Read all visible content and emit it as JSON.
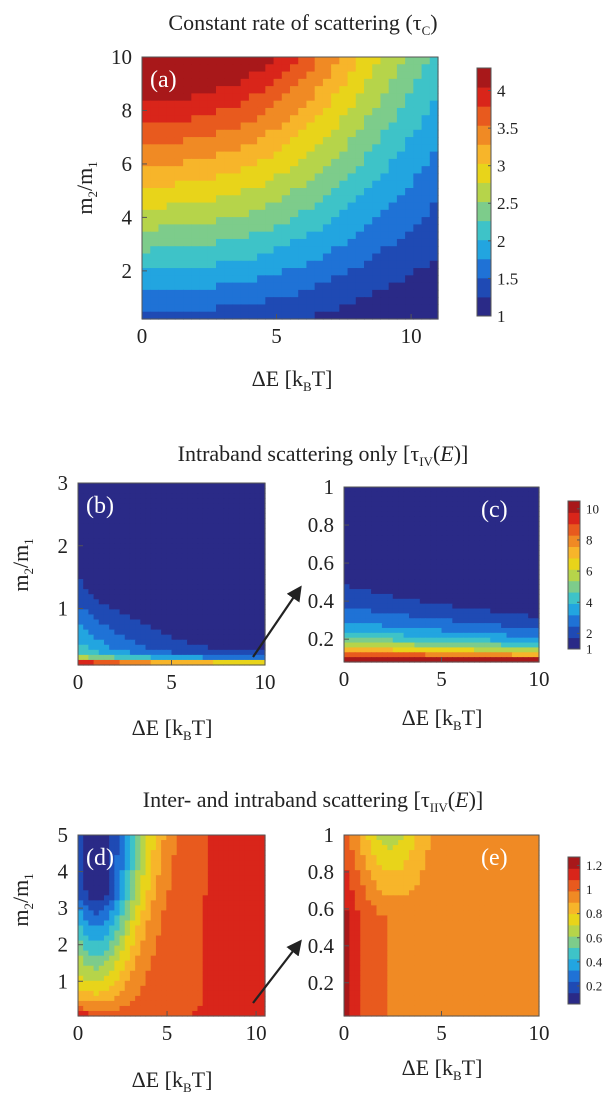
{
  "colors": {
    "colormap": [
      "#2a2a87",
      "#1f4ab4",
      "#1f72d6",
      "#22a5e0",
      "#3ec3c8",
      "#7dcc8b",
      "#b6d44a",
      "#e8d41a",
      "#f7b52a",
      "#f08a24",
      "#e85a1e",
      "#d9251a",
      "#a8181a"
    ],
    "axis": "#555555",
    "arrow": "#222222"
  },
  "sections": {
    "a_title": "Constant rate of scattering (τC)",
    "bc_title": "Intraband scattering only  [τIV(E)]",
    "de_title": "Inter- and intraband scattering  [τIIV(E)]"
  },
  "chart_data": [
    {
      "id": "a",
      "type": "heatmap",
      "panel_label": "(a)",
      "xlabel": "ΔE [kBT]",
      "ylabel": "m2/m1",
      "xlim": [
        0,
        11
      ],
      "ylim": [
        0.2,
        10
      ],
      "xticks": [
        0,
        5,
        10
      ],
      "yticks": [
        2,
        4,
        6,
        8,
        10
      ],
      "colorbar": {
        "range": [
          1,
          4.3
        ],
        "ticks": [
          1,
          1.5,
          2,
          2.5,
          3,
          3.5,
          4
        ]
      },
      "samples": [
        {
          "x": 0,
          "y": 10,
          "value": 4.3
        },
        {
          "x": 0,
          "y": 5,
          "value": 3.0
        },
        {
          "x": 0,
          "y": 0.5,
          "value": 1.5
        },
        {
          "x": 5,
          "y": 10,
          "value": 3.0
        },
        {
          "x": 5,
          "y": 3,
          "value": 2.0
        },
        {
          "x": 10,
          "y": 10,
          "value": 1.6
        },
        {
          "x": 10,
          "y": 2,
          "value": 1.0
        }
      ]
    },
    {
      "id": "b",
      "type": "heatmap",
      "panel_label": "(b)",
      "xlabel": "ΔE [kBT]",
      "ylabel": "m2/m1",
      "xlim": [
        0,
        10
      ],
      "ylim": [
        0.1,
        3
      ],
      "xticks": [
        0,
        5,
        10
      ],
      "yticks": [
        1,
        2,
        3
      ],
      "samples": [
        {
          "x": 0,
          "y": 0.1,
          "value": 10
        },
        {
          "x": 5,
          "y": 0.2,
          "value": 4
        },
        {
          "x": 0,
          "y": 1,
          "value": 2
        },
        {
          "x": 5,
          "y": 2,
          "value": 1
        }
      ]
    },
    {
      "id": "c",
      "type": "heatmap",
      "panel_label": "(c)",
      "xlabel": "ΔE [kBT]",
      "xlim": [
        0,
        10
      ],
      "ylim": [
        0.08,
        1
      ],
      "xticks": [
        0,
        5,
        10
      ],
      "yticks": [
        0.2,
        0.4,
        0.6,
        0.8,
        1
      ],
      "colorbar": {
        "range": [
          1,
          10.5
        ],
        "ticks": [
          1,
          2,
          4,
          6,
          8,
          10
        ]
      },
      "samples": [
        {
          "x": 0,
          "y": 0.1,
          "value": 10
        },
        {
          "x": 5,
          "y": 0.2,
          "value": 4
        },
        {
          "x": 0,
          "y": 0.8,
          "value": 2
        },
        {
          "x": 8,
          "y": 0.9,
          "value": 1
        }
      ]
    },
    {
      "id": "d",
      "type": "heatmap",
      "panel_label": "(d)",
      "xlabel": "ΔE [kBT]",
      "ylabel": "m2/m1",
      "xlim": [
        0,
        10.5
      ],
      "ylim": [
        0.05,
        5
      ],
      "xticks": [
        0,
        5,
        10
      ],
      "yticks": [
        1,
        2,
        3,
        4,
        5
      ],
      "samples": [
        {
          "x": 1,
          "y": 4.5,
          "value": 0.1
        },
        {
          "x": 0,
          "y": 0.1,
          "value": 1.25
        },
        {
          "x": 5,
          "y": 3,
          "value": 0.85
        },
        {
          "x": 10,
          "y": 3,
          "value": 0.95
        }
      ]
    },
    {
      "id": "e",
      "type": "heatmap",
      "panel_label": "(e)",
      "xlabel": "ΔE [kBT]",
      "xlim": [
        0,
        10
      ],
      "ylim": [
        0.02,
        1
      ],
      "xticks": [
        0,
        5,
        10
      ],
      "yticks": [
        0.2,
        0.4,
        0.6,
        0.8,
        1
      ],
      "colorbar": {
        "range": [
          0.05,
          1.27
        ],
        "ticks": [
          0.2,
          0.4,
          0.6,
          0.8,
          1,
          1.2
        ]
      },
      "samples": [
        {
          "x": 0,
          "y": 0.25,
          "value": 1.25
        },
        {
          "x": 2,
          "y": 1,
          "value": 0.7
        },
        {
          "x": 6,
          "y": 0.5,
          "value": 0.9
        }
      ]
    }
  ]
}
